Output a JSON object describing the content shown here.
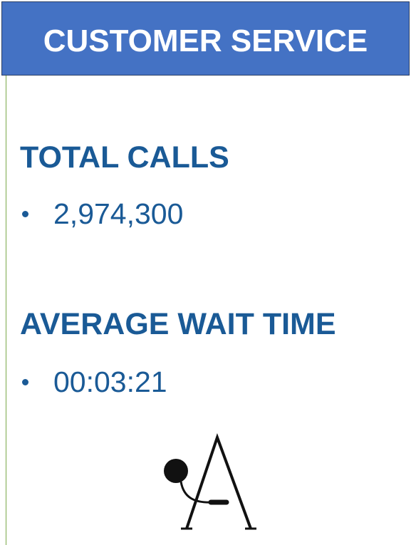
{
  "header": {
    "title": "CUSTOMER SERVICE"
  },
  "sections": [
    {
      "heading": "TOTAL CALLS",
      "items": [
        "2,974,300"
      ]
    },
    {
      "heading": "AVERAGE WAIT TIME",
      "items": [
        "00:03:21"
      ]
    }
  ]
}
